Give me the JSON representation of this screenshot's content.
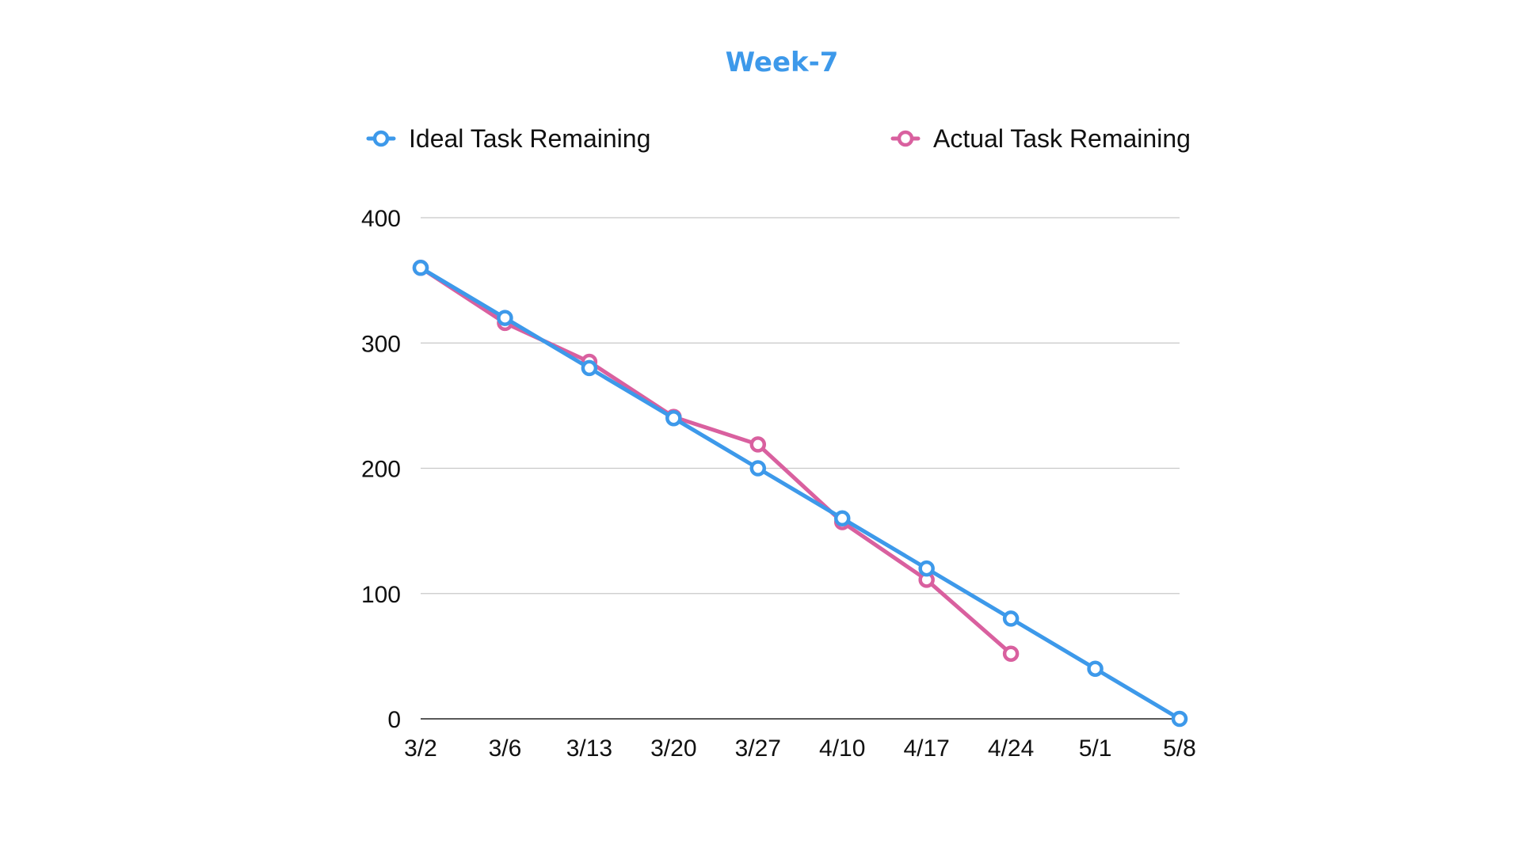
{
  "chart_data": {
    "type": "line",
    "title": "Week-7",
    "title_color": "#3d99ea",
    "xlabel": "",
    "ylabel": "",
    "categories": [
      "3/2",
      "3/6",
      "3/13",
      "3/20",
      "3/27",
      "4/10",
      "4/17",
      "4/24",
      "5/1",
      "5/8"
    ],
    "ylim": [
      0,
      400
    ],
    "yticks": [
      0,
      100,
      200,
      300,
      400
    ],
    "grid": true,
    "legend_position": "top",
    "series": [
      {
        "name": "Ideal Task Remaining",
        "color": "#3d99ea",
        "values": [
          360,
          320,
          280,
          240,
          200,
          160,
          120,
          80,
          40,
          0
        ]
      },
      {
        "name": "Actual Task Remaining",
        "color": "#d9609f",
        "values": [
          360,
          316,
          285,
          241,
          219,
          157,
          111,
          52,
          null,
          null
        ]
      }
    ]
  }
}
